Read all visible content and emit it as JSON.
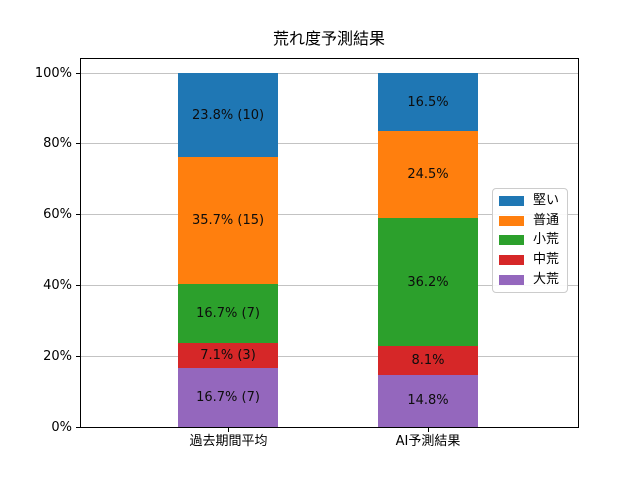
{
  "figure": {
    "title": "荒れ度予測結果"
  },
  "chart_data": {
    "type": "bar",
    "variant": "stacked_percentage",
    "title": "荒れ度予測結果",
    "xlabel": "",
    "ylabel": "",
    "categories": [
      "過去期間平均",
      "AI予測結果"
    ],
    "y_ticks": [
      {
        "label": "0%",
        "value": 0
      },
      {
        "label": "20%",
        "value": 20
      },
      {
        "label": "40%",
        "value": 40
      },
      {
        "label": "60%",
        "value": 60
      },
      {
        "label": "80%",
        "value": 80
      },
      {
        "label": "100%",
        "value": 100
      }
    ],
    "ylim": [
      0,
      104.2
    ],
    "grid": true,
    "legend_position": "center-right",
    "stack_order": "first-series-on-top",
    "series": [
      {
        "name": "堅い",
        "color": "#1f77b4",
        "values": [
          23.8,
          16.5
        ],
        "labels": [
          "23.8% (10)",
          "16.5%"
        ]
      },
      {
        "name": "普通",
        "color": "#ff7f0e",
        "values": [
          35.7,
          24.5
        ],
        "labels": [
          "35.7% (15)",
          "24.5%"
        ]
      },
      {
        "name": "小荒",
        "color": "#2ca02c",
        "values": [
          16.7,
          36.2
        ],
        "labels": [
          "16.7% (7)",
          "36.2%"
        ]
      },
      {
        "name": "中荒",
        "color": "#d62728",
        "values": [
          7.1,
          8.1
        ],
        "labels": [
          "7.1% (3)",
          "8.1%"
        ]
      },
      {
        "name": "大荒",
        "color": "#9467bd",
        "values": [
          16.7,
          14.8
        ],
        "labels": [
          "16.7% (7)",
          "14.8%"
        ]
      }
    ]
  }
}
